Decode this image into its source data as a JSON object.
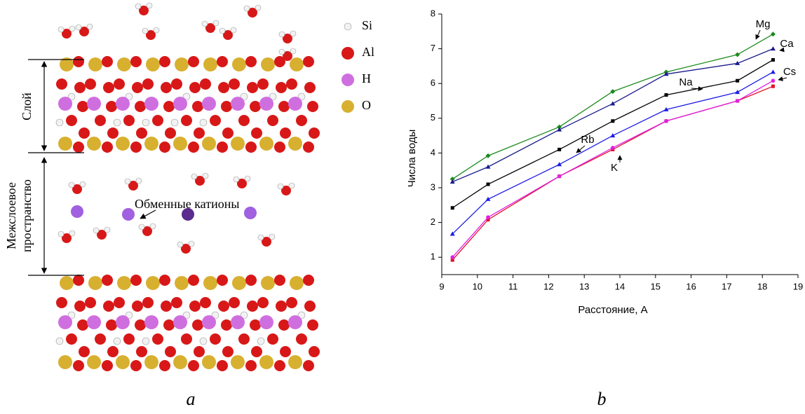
{
  "figure": {
    "legend": [
      "Si",
      "Al",
      "H",
      "O"
    ],
    "layer_label": "Слой",
    "interlayer_label": [
      "Межслоевое",
      "пространство"
    ],
    "cations_label": "Обменные катионы",
    "panel_a": "a",
    "panel_b": "b"
  },
  "chart_data": {
    "type": "line",
    "x_label": "Расстояние, А",
    "y_label": "Числа воды",
    "x": [
      9.3,
      10.3,
      12.3,
      13.8,
      15.3,
      17.3,
      18.3
    ],
    "series": [
      {
        "name": "Mg",
        "color": "#1c8a1c",
        "marker": "diamond",
        "values": [
          3.25,
          3.92,
          4.75,
          5.77,
          6.33,
          6.83,
          7.42
        ]
      },
      {
        "name": "Ca",
        "color": "#1a1a8c",
        "marker": "triangle",
        "values": [
          3.17,
          3.6,
          4.67,
          5.42,
          6.27,
          6.58,
          7.0
        ]
      },
      {
        "name": "Na",
        "color": "#000000",
        "marker": "square",
        "values": [
          2.42,
          3.1,
          4.1,
          4.92,
          5.67,
          6.08,
          6.68
        ]
      },
      {
        "name": "Cs",
        "color": "#1c1ce6",
        "marker": "triangle",
        "values": [
          1.67,
          2.67,
          3.67,
          4.5,
          5.25,
          5.75,
          6.33
        ]
      },
      {
        "name": "K",
        "color": "#e0102a",
        "marker": "square",
        "values": [
          0.92,
          2.08,
          3.33,
          4.1,
          4.92,
          5.5,
          5.92
        ]
      },
      {
        "name": "Rb",
        "color": "#e020e0",
        "marker": "circle",
        "values": [
          1.0,
          2.15,
          3.33,
          4.15,
          4.92,
          5.5,
          6.08
        ]
      }
    ],
    "xlim": [
      9,
      19
    ],
    "xticks": [
      9,
      10,
      11,
      12,
      13,
      14,
      15,
      16,
      17,
      18,
      19
    ],
    "ylim": [
      0.5,
      8
    ],
    "yticks": [
      1,
      2,
      3,
      4,
      5,
      6,
      7,
      8
    ],
    "grid": false
  }
}
